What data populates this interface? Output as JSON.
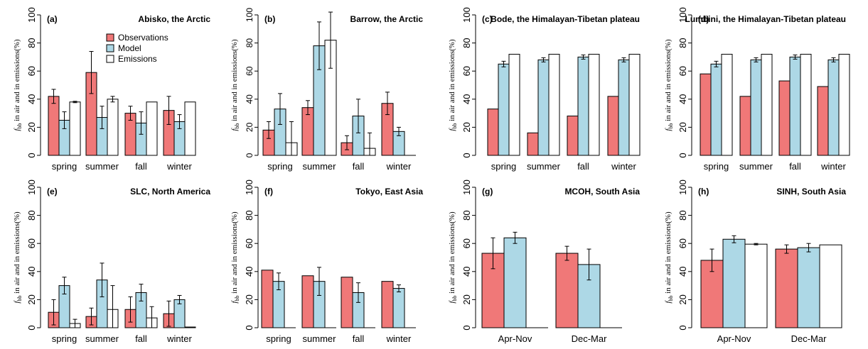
{
  "colors": {
    "observations": "#f07878",
    "model": "#add8e6",
    "emissions": "#ffffff",
    "edge": "#000000"
  },
  "ylabel": "f_bb in air and in emissions(%)",
  "legend": [
    "Observations",
    "Model",
    "Emissions"
  ],
  "chart_data": [
    {
      "type": "bar",
      "panel": "(a)",
      "title": "Abisko, the Arctic",
      "ylim": [
        0,
        100
      ],
      "yticks": [
        0,
        20,
        40,
        60,
        80,
        100
      ],
      "categories": [
        "spring",
        "summer",
        "fall",
        "winter"
      ],
      "series": [
        {
          "name": "Observations",
          "values": [
            42,
            59,
            30,
            32
          ],
          "err": [
            5,
            15,
            5,
            10
          ]
        },
        {
          "name": "Model",
          "values": [
            25,
            27,
            23,
            24
          ],
          "err": [
            6,
            8,
            8,
            5
          ]
        },
        {
          "name": "Emissions",
          "values": [
            38,
            40,
            38,
            38
          ],
          "err": [
            0.5,
            2,
            0,
            0
          ]
        }
      ]
    },
    {
      "type": "bar",
      "panel": "(b)",
      "title": "Barrow, the Arctic",
      "ylim": [
        0,
        100
      ],
      "yticks": [
        0,
        20,
        40,
        60,
        80,
        100
      ],
      "categories": [
        "spring",
        "summer",
        "fall",
        "winter"
      ],
      "series": [
        {
          "name": "Observations",
          "values": [
            18,
            34,
            9,
            37
          ],
          "err": [
            6,
            5,
            5,
            8
          ]
        },
        {
          "name": "Model",
          "values": [
            33,
            78,
            28,
            17
          ],
          "err": [
            11,
            17,
            12,
            3
          ]
        },
        {
          "name": "Emissions",
          "values": [
            9,
            0,
            5,
            0
          ],
          "err": [
            15,
            0,
            11,
            0
          ]
        },
        {
          "name": "Emissions",
          "values": [
            0,
            82,
            0,
            0
          ],
          "err": [
            0,
            20,
            0,
            0
          ]
        }
      ]
    },
    {
      "type": "bar",
      "panel": "(c)",
      "title": "Bode, the Himalayan-Tibetan plateau",
      "ylim": [
        0,
        100
      ],
      "yticks": [
        0,
        20,
        40,
        60,
        80,
        100
      ],
      "categories": [
        "spring",
        "summer",
        "fall",
        "winter"
      ],
      "series": [
        {
          "name": "Observations",
          "values": [
            33,
            16,
            28,
            42
          ],
          "err": [
            0,
            0,
            0,
            0
          ]
        },
        {
          "name": "Model",
          "values": [
            65,
            68,
            70,
            68
          ],
          "err": [
            2,
            1.5,
            1.5,
            1.5
          ]
        },
        {
          "name": "Emissions",
          "values": [
            72,
            72,
            72,
            72
          ],
          "err": [
            0,
            0,
            0,
            0
          ]
        }
      ]
    },
    {
      "type": "bar",
      "panel": "(d)",
      "title": "Lumbini, the Himalayan-Tibetan plateau",
      "ylim": [
        0,
        100
      ],
      "yticks": [
        0,
        20,
        40,
        60,
        80,
        100
      ],
      "categories": [
        "spring",
        "summer",
        "fall",
        "winter"
      ],
      "series": [
        {
          "name": "Observations",
          "values": [
            58,
            42,
            53,
            49
          ],
          "err": [
            0,
            0,
            0,
            0
          ]
        },
        {
          "name": "Model",
          "values": [
            65,
            68,
            70,
            68
          ],
          "err": [
            2,
            1.5,
            1.5,
            1.5
          ]
        },
        {
          "name": "Emissions",
          "values": [
            72,
            72,
            72,
            72
          ],
          "err": [
            0,
            0,
            0,
            0
          ]
        }
      ]
    },
    {
      "type": "bar",
      "panel": "(e)",
      "title": "SLC, North America",
      "ylim": [
        0,
        100
      ],
      "yticks": [
        0,
        20,
        40,
        60,
        80,
        100
      ],
      "categories": [
        "spring",
        "summer",
        "fall",
        "winter"
      ],
      "series": [
        {
          "name": "Observations",
          "values": [
            11,
            8,
            13,
            10
          ],
          "err": [
            9,
            6,
            9,
            9
          ]
        },
        {
          "name": "Model",
          "values": [
            30,
            34,
            25,
            20
          ],
          "err": [
            6,
            12,
            6,
            3
          ]
        },
        {
          "name": "Emissions",
          "values": [
            3,
            13,
            7,
            0.5
          ],
          "err": [
            3,
            17,
            8,
            0
          ]
        }
      ]
    },
    {
      "type": "bar",
      "panel": "(f)",
      "title": "Tokyo, East Asia",
      "ylim": [
        0,
        100
      ],
      "yticks": [
        0,
        20,
        40,
        60,
        80,
        100
      ],
      "categories": [
        "spring",
        "summer",
        "fall",
        "winter"
      ],
      "series": [
        {
          "name": "Observations",
          "values": [
            41,
            37,
            36,
            33
          ],
          "err": [
            0,
            0,
            0,
            0
          ]
        },
        {
          "name": "Model",
          "values": [
            33,
            33,
            25,
            28
          ],
          "err": [
            6,
            10,
            7,
            2.5
          ]
        },
        {
          "name": "Emissions",
          "values": [
            0,
            0,
            0,
            0
          ],
          "err": [
            0,
            0,
            0,
            0
          ]
        }
      ]
    },
    {
      "type": "bar",
      "panel": "(g)",
      "title": "MCOH, South Asia",
      "ylim": [
        0,
        100
      ],
      "yticks": [
        0,
        20,
        40,
        60,
        80,
        100
      ],
      "categories": [
        "Apr-Nov",
        "Dec-Mar"
      ],
      "series": [
        {
          "name": "Observations",
          "values": [
            53,
            53
          ],
          "err": [
            11,
            5
          ]
        },
        {
          "name": "Model",
          "values": [
            64,
            45
          ],
          "err": [
            4,
            11
          ]
        },
        {
          "name": "Emissions",
          "values": [
            0,
            0
          ],
          "err": [
            0,
            0
          ]
        }
      ]
    },
    {
      "type": "bar",
      "panel": "(h)",
      "title": "SINH, South Asia",
      "ylim": [
        0,
        100
      ],
      "yticks": [
        0,
        20,
        40,
        60,
        80,
        100
      ],
      "categories": [
        "Apr-Nov",
        "Dec-Mar"
      ],
      "series": [
        {
          "name": "Observations",
          "values": [
            48,
            56
          ],
          "err": [
            8,
            3
          ]
        },
        {
          "name": "Model",
          "values": [
            63,
            57
          ],
          "err": [
            2.5,
            3
          ]
        },
        {
          "name": "Emissions",
          "values": [
            59.5,
            59
          ],
          "err": [
            0.5,
            0
          ]
        }
      ]
    }
  ]
}
